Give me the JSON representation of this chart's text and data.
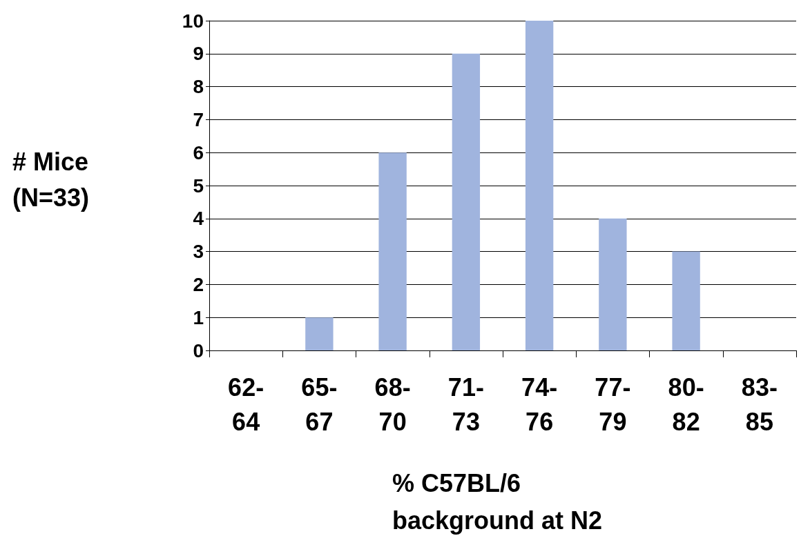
{
  "chart_data": {
    "type": "bar",
    "xlabel": "% C57BL/6 background at N2",
    "ylabel": "# Mice (N=33)",
    "categories": [
      "62-64",
      "65-67",
      "68-70",
      "71-73",
      "74-76",
      "77-79",
      "80-82",
      "83-85"
    ],
    "values": [
      0,
      1,
      6,
      9,
      10,
      4,
      3,
      0
    ],
    "color": "#a0b4de",
    "ylim": [
      0,
      10
    ],
    "yticks": [
      0,
      1,
      2,
      3,
      4,
      5,
      6,
      7,
      8,
      9,
      10
    ],
    "grid": "y"
  }
}
